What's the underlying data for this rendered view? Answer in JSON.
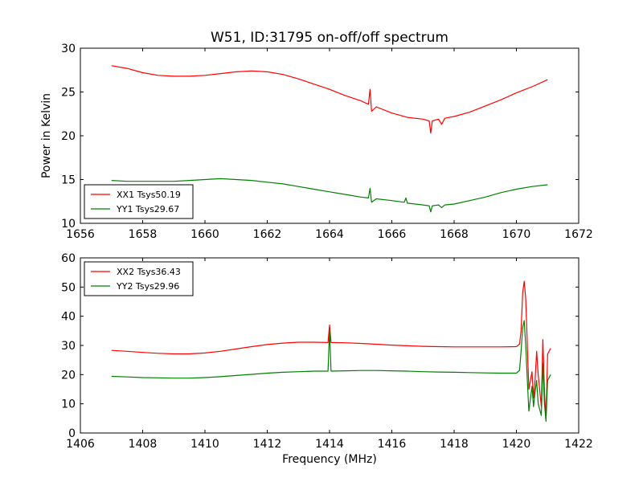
{
  "chart_data": [
    {
      "type": "line",
      "title": "W51, ID:31795 on-off/off spectrum",
      "xlabel": "",
      "ylabel": "Power in Kelvin",
      "xlim": [
        1656,
        1672
      ],
      "ylim": [
        10,
        30
      ],
      "xticks": [
        "1656",
        "1658",
        "1660",
        "1662",
        "1664",
        "1666",
        "1668",
        "1670",
        "1672"
      ],
      "yticks": [
        "10",
        "15",
        "20",
        "25",
        "30"
      ],
      "legend_position": "lower-left",
      "series": [
        {
          "name": "XX1 Tsys50.19",
          "color": "#ff0000",
          "x": [
            1657.0,
            1657.5,
            1658.0,
            1658.5,
            1659.0,
            1659.5,
            1660.0,
            1660.5,
            1661.0,
            1661.5,
            1662.0,
            1662.5,
            1663.0,
            1663.5,
            1664.0,
            1664.5,
            1665.0,
            1665.25,
            1665.3,
            1665.35,
            1665.5,
            1666.0,
            1666.5,
            1667.0,
            1667.2,
            1667.25,
            1667.3,
            1667.5,
            1667.6,
            1667.7,
            1668.0,
            1668.5,
            1669.0,
            1669.5,
            1670.0,
            1670.5,
            1671.0
          ],
          "y": [
            28.0,
            27.7,
            27.2,
            26.9,
            26.8,
            26.8,
            26.9,
            27.1,
            27.3,
            27.4,
            27.3,
            27.0,
            26.5,
            25.9,
            25.3,
            24.6,
            24.0,
            23.6,
            25.3,
            22.8,
            23.3,
            22.6,
            22.1,
            21.9,
            21.7,
            20.3,
            21.7,
            21.9,
            21.3,
            22.0,
            22.2,
            22.7,
            23.4,
            24.1,
            24.9,
            25.6,
            26.4
          ]
        },
        {
          "name": "YY1 Tsys29.67",
          "color": "#008000",
          "x": [
            1657.0,
            1657.5,
            1658.0,
            1658.5,
            1659.0,
            1659.5,
            1660.0,
            1660.5,
            1661.0,
            1661.5,
            1662.0,
            1662.5,
            1663.0,
            1663.5,
            1664.0,
            1664.5,
            1665.0,
            1665.25,
            1665.3,
            1665.35,
            1665.5,
            1666.0,
            1666.4,
            1666.45,
            1666.5,
            1667.0,
            1667.2,
            1667.25,
            1667.3,
            1667.5,
            1667.6,
            1667.7,
            1668.0,
            1668.5,
            1669.0,
            1669.5,
            1670.0,
            1670.5,
            1671.0
          ],
          "y": [
            14.9,
            14.8,
            14.8,
            14.8,
            14.8,
            14.9,
            15.0,
            15.1,
            15.0,
            14.9,
            14.7,
            14.5,
            14.2,
            13.9,
            13.6,
            13.3,
            13.0,
            12.9,
            14.0,
            12.4,
            12.8,
            12.6,
            12.4,
            12.9,
            12.3,
            12.1,
            12.0,
            11.3,
            12.0,
            12.1,
            11.8,
            12.1,
            12.2,
            12.6,
            13.0,
            13.5,
            13.9,
            14.2,
            14.4
          ]
        }
      ]
    },
    {
      "type": "line",
      "title": "",
      "xlabel": "Frequency (MHz)",
      "ylabel": "",
      "xlim": [
        1406,
        1422
      ],
      "ylim": [
        0,
        60
      ],
      "xticks": [
        "1406",
        "1408",
        "1410",
        "1412",
        "1414",
        "1416",
        "1418",
        "1420",
        "1422"
      ],
      "yticks": [
        "0",
        "10",
        "20",
        "30",
        "40",
        "50",
        "60"
      ],
      "legend_position": "upper-left",
      "series": [
        {
          "name": "XX2 Tsys36.43",
          "color": "#ff0000",
          "x": [
            1407.0,
            1407.5,
            1408.0,
            1408.5,
            1409.0,
            1409.5,
            1410.0,
            1410.5,
            1411.0,
            1411.5,
            1412.0,
            1412.5,
            1413.0,
            1413.5,
            1413.95,
            1414.0,
            1414.05,
            1414.5,
            1415.0,
            1415.5,
            1416.0,
            1416.5,
            1417.0,
            1417.5,
            1418.0,
            1418.5,
            1419.0,
            1419.5,
            1420.0,
            1420.1,
            1420.15,
            1420.2,
            1420.25,
            1420.3,
            1420.35,
            1420.4,
            1420.5,
            1420.55,
            1420.6,
            1420.65,
            1420.7,
            1420.8,
            1420.85,
            1420.9,
            1420.95,
            1421.0,
            1421.1
          ],
          "y": [
            28.3,
            28.0,
            27.6,
            27.3,
            27.1,
            27.1,
            27.4,
            28.0,
            28.8,
            29.6,
            30.3,
            30.8,
            31.1,
            31.1,
            31.0,
            37.0,
            31.0,
            30.9,
            30.7,
            30.4,
            30.1,
            29.9,
            29.7,
            29.6,
            29.5,
            29.5,
            29.5,
            29.5,
            29.6,
            30.5,
            35.0,
            48.0,
            52.0,
            46.0,
            30.0,
            15.0,
            21.0,
            12.0,
            18.0,
            28.0,
            20.0,
            9.0,
            32.0,
            14.0,
            5.0,
            27.0,
            29.0
          ]
        },
        {
          "name": "YY2 Tsys29.96",
          "color": "#008000",
          "x": [
            1407.0,
            1407.5,
            1408.0,
            1408.5,
            1409.0,
            1409.5,
            1410.0,
            1410.5,
            1411.0,
            1411.5,
            1412.0,
            1412.5,
            1413.0,
            1413.5,
            1413.95,
            1414.0,
            1414.05,
            1414.5,
            1415.0,
            1415.5,
            1416.0,
            1416.5,
            1417.0,
            1417.5,
            1418.0,
            1418.5,
            1419.0,
            1419.5,
            1420.0,
            1420.1,
            1420.15,
            1420.2,
            1420.25,
            1420.3,
            1420.35,
            1420.4,
            1420.5,
            1420.55,
            1420.6,
            1420.65,
            1420.7,
            1420.8,
            1420.85,
            1420.9,
            1420.95,
            1421.0,
            1421.1
          ],
          "y": [
            19.4,
            19.2,
            19.0,
            18.9,
            18.8,
            18.8,
            19.0,
            19.3,
            19.7,
            20.1,
            20.5,
            20.8,
            21.0,
            21.2,
            21.2,
            35.0,
            21.2,
            21.3,
            21.4,
            21.4,
            21.3,
            21.2,
            21.0,
            20.9,
            20.8,
            20.7,
            20.6,
            20.5,
            20.5,
            21.5,
            28.0,
            36.0,
            38.5,
            30.0,
            18.0,
            7.5,
            16.0,
            9.0,
            14.0,
            18.0,
            10.0,
            6.0,
            24.0,
            10.0,
            4.0,
            18.0,
            20.0
          ]
        }
      ]
    }
  ]
}
